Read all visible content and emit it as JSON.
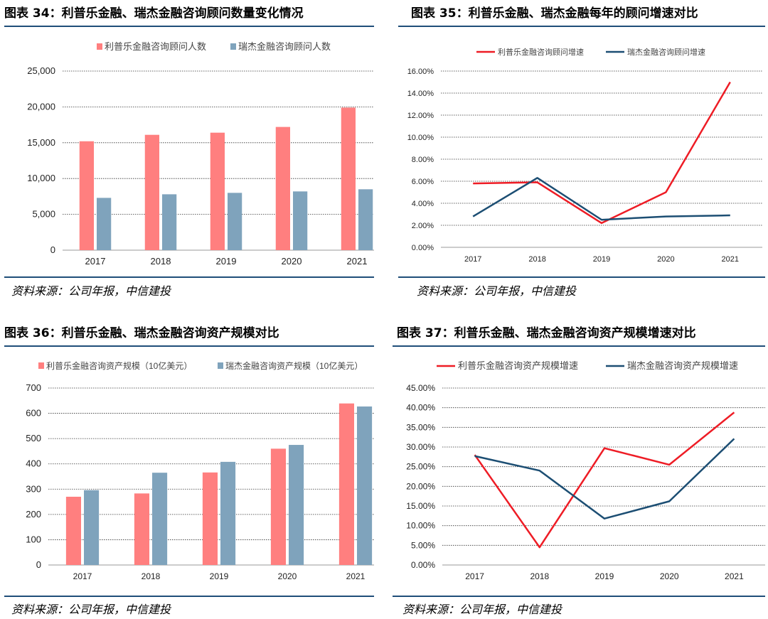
{
  "colors": {
    "red_bar": "#ff7f7f",
    "blue_bar": "#7fa3bc",
    "red_line": "#ee1c25",
    "blue_line": "#1c4e73",
    "rule": "#1f4e79"
  },
  "panels": [
    {
      "title": "图表 34：利普乐金融、瑞杰金融咨询顾问数量变化情况",
      "source": "资料来源：公司年报，中信建投"
    },
    {
      "title": "图表 35：利普乐金融、瑞杰金融每年的顾问增速对比",
      "source": "资料来源：公司年报，中信建投"
    },
    {
      "title": "图表 36：利普乐金融、瑞杰金融咨询资产规模对比",
      "source": "资料来源：公司年报，中信建投"
    },
    {
      "title": "图表 37：利普乐金融、瑞杰金融咨询资产规模增速对比",
      "source": "资料来源：公司年报，中信建投"
    }
  ],
  "chart_data": [
    {
      "type": "bar",
      "categories": [
        "2017",
        "2018",
        "2019",
        "2020",
        "2021"
      ],
      "series": [
        {
          "name": "利普乐金融咨询顾问人数",
          "values": [
            15200,
            16100,
            16400,
            17200,
            19900
          ]
        },
        {
          "name": "瑞杰金融咨询顾问人数",
          "values": [
            7300,
            7800,
            8000,
            8200,
            8500
          ]
        }
      ],
      "ylim": [
        0,
        25000
      ],
      "yticks": [
        "0",
        "5,000",
        "10,000",
        "15,000",
        "20,000",
        "25,000"
      ],
      "legend": "top",
      "grid": true
    },
    {
      "type": "line",
      "categories": [
        "2017",
        "2018",
        "2019",
        "2020",
        "2021"
      ],
      "series": [
        {
          "name": "利普乐金融咨询顾问增速",
          "values": [
            5.8,
            5.9,
            2.2,
            5.0,
            15.0
          ]
        },
        {
          "name": "瑞杰金融咨询顾问增速",
          "values": [
            2.8,
            6.3,
            2.5,
            2.8,
            2.9
          ]
        }
      ],
      "ylim": [
        0,
        16
      ],
      "yticks": [
        "0.00%",
        "2.00%",
        "4.00%",
        "6.00%",
        "8.00%",
        "10.00%",
        "12.00%",
        "14.00%",
        "16.00%"
      ],
      "legend": "top",
      "grid": true
    },
    {
      "type": "bar",
      "categories": [
        "2017",
        "2018",
        "2019",
        "2020",
        "2021"
      ],
      "series": [
        {
          "name": "利普乐金融咨询资产规模（10亿美元）",
          "values": [
            270,
            283,
            366,
            460,
            639
          ]
        },
        {
          "name": "瑞杰金融咨询资产规模（10亿美元）",
          "values": [
            296,
            365,
            408,
            475,
            627
          ]
        }
      ],
      "ylim": [
        0,
        700
      ],
      "yticks": [
        "0",
        "100",
        "200",
        "300",
        "400",
        "500",
        "600",
        "700"
      ],
      "legend": "top",
      "grid": true
    },
    {
      "type": "line",
      "categories": [
        "2017",
        "2018",
        "2019",
        "2020",
        "2021"
      ],
      "series": [
        {
          "name": "利普乐金融咨询资产规模增速",
          "values": [
            28.0,
            4.5,
            29.7,
            25.5,
            38.8
          ]
        },
        {
          "name": "瑞杰金融咨询资产规模增速",
          "values": [
            27.7,
            24.0,
            11.8,
            16.2,
            32.1
          ]
        }
      ],
      "ylim": [
        0,
        45
      ],
      "yticks": [
        "0.00%",
        "5.00%",
        "10.00%",
        "15.00%",
        "20.00%",
        "25.00%",
        "30.00%",
        "35.00%",
        "40.00%",
        "45.00%"
      ],
      "legend": "top",
      "grid": true
    }
  ]
}
